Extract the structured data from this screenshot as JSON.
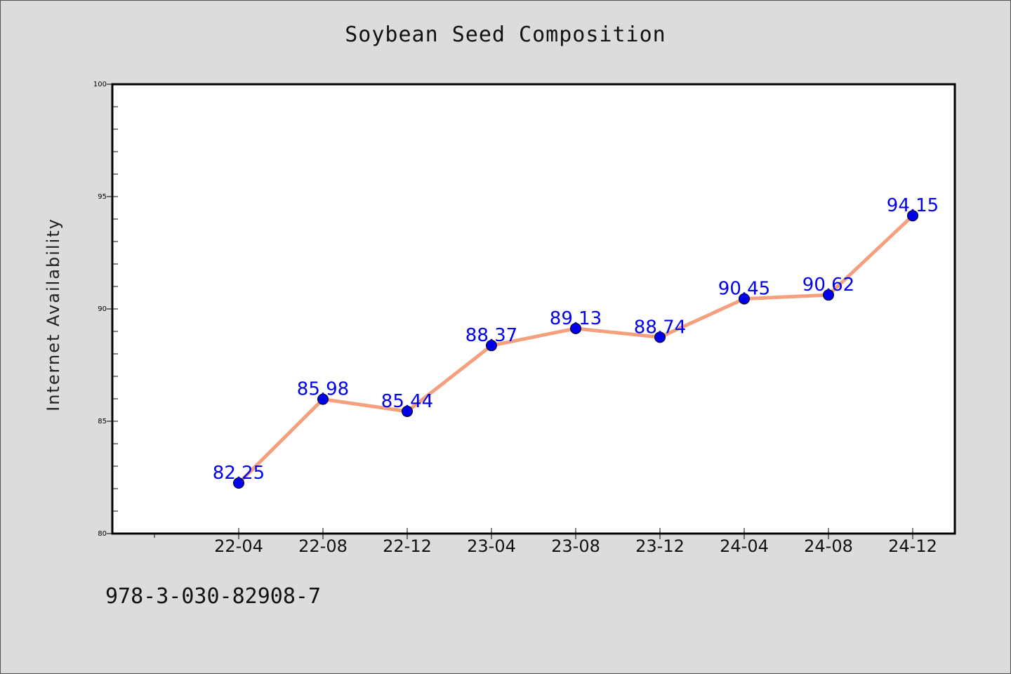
{
  "chart_data": {
    "type": "line",
    "title": "Soybean Seed Composition",
    "xlabel": "",
    "ylabel": "Internet Availability",
    "categories": [
      "22-04",
      "22-08",
      "22-12",
      "23-04",
      "23-08",
      "23-12",
      "24-04",
      "24-08",
      "24-12"
    ],
    "series": [
      {
        "values": [
          82.25,
          85.98,
          85.44,
          88.37,
          89.13,
          88.74,
          90.45,
          90.62,
          94.15
        ],
        "labels": [
          "82.25",
          "85.98",
          "85.44",
          "88.37",
          "89.13",
          "88.74",
          "90.45",
          "90.62",
          "94.15"
        ],
        "line_color": "#f4a07e",
        "marker_color": "#0000ee",
        "label_color": "#0000ee"
      }
    ],
    "ylim": [
      80,
      100
    ],
    "y_ticks": [
      "80",
      "85",
      "90",
      "95",
      "100"
    ],
    "grid": false,
    "legend": "none"
  },
  "footer": {
    "code": "978-3-030-82908-7"
  }
}
